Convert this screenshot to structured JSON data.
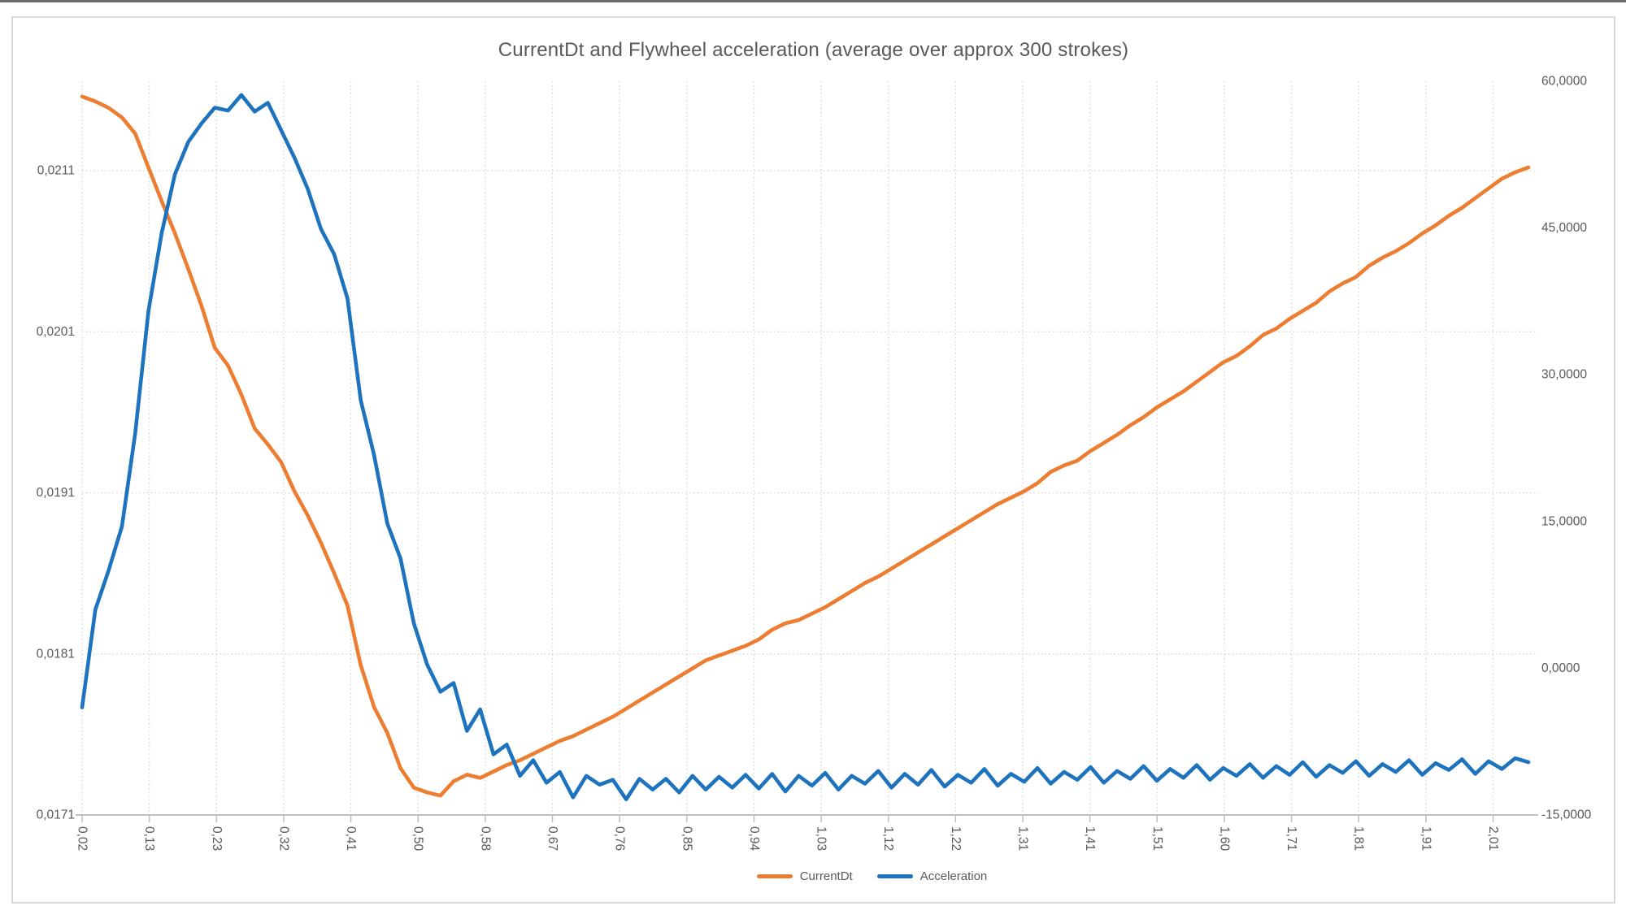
{
  "window": {
    "top_edge_color": "#6a6a6a"
  },
  "chart": {
    "title": "CurrentDt and Flywheel acceleration (average over approx 300 strokes)",
    "colors": {
      "series_currentdt": "#ED7D31",
      "series_acceleration": "#1E73BE",
      "gridline": "#d8d8d8",
      "axis_line": "#bfbfbf",
      "axis_text": "#595959",
      "border": "#d9d9d9"
    }
  },
  "chart_data": {
    "type": "line",
    "title": "CurrentDt and Flywheel acceleration (average over approx 300 strokes)",
    "grid": "dotted",
    "legend_position": "bottom",
    "x_axis": {
      "type": "category",
      "tick_labels": [
        "0,02",
        "0,13",
        "0,23",
        "0,32",
        "0,41",
        "0,50",
        "0,58",
        "0,67",
        "0,76",
        "0,85",
        "0,94",
        "1,03",
        "1,12",
        "1,22",
        "1,31",
        "1,41",
        "1,51",
        "1,60",
        "1,71",
        "1,81",
        "1,91",
        "2,01"
      ],
      "label_rotation_deg": 90,
      "note": "series sampled at 110 evenly spaced points across the axis; shown labels fall every ~5 samples"
    },
    "left_axis": {
      "applies_to": "CurrentDt",
      "tick_labels": [
        "0,0211",
        "0,0201",
        "0,0191",
        "0,0181",
        "0,0171"
      ],
      "tick_values": [
        0.0211,
        0.0201,
        0.0191,
        0.0181,
        0.0171
      ],
      "min": 0.0171,
      "max": 0.021655
    },
    "right_axis": {
      "applies_to": "Acceleration",
      "tick_labels": [
        "60,0000",
        "45,0000",
        "30,0000",
        "15,0000",
        "0,0000",
        "-15,0000"
      ],
      "tick_values": [
        60,
        45,
        30,
        15,
        0,
        -15
      ],
      "min": -15,
      "max": 60
    },
    "x_approx_seconds": [
      0.02,
      0.039,
      0.057,
      0.076,
      0.095,
      0.114,
      0.132,
      0.151,
      0.17,
      0.188,
      0.207,
      0.226,
      0.245,
      0.263,
      0.282,
      0.301,
      0.319,
      0.338,
      0.357,
      0.376,
      0.394,
      0.413,
      0.432,
      0.45,
      0.469,
      0.488,
      0.507,
      0.525,
      0.544,
      0.563,
      0.581,
      0.6,
      0.619,
      0.638,
      0.656,
      0.675,
      0.694,
      0.712,
      0.731,
      0.75,
      0.769,
      0.787,
      0.806,
      0.825,
      0.843,
      0.862,
      0.881,
      0.9,
      0.918,
      0.937,
      0.956,
      0.974,
      0.993,
      1.012,
      1.031,
      1.049,
      1.068,
      1.087,
      1.105,
      1.124,
      1.143,
      1.162,
      1.18,
      1.199,
      1.218,
      1.236,
      1.255,
      1.274,
      1.293,
      1.311,
      1.33,
      1.349,
      1.367,
      1.386,
      1.405,
      1.424,
      1.442,
      1.461,
      1.48,
      1.498,
      1.517,
      1.536,
      1.555,
      1.573,
      1.592,
      1.611,
      1.629,
      1.648,
      1.667,
      1.686,
      1.704,
      1.723,
      1.742,
      1.76,
      1.779,
      1.798,
      1.817,
      1.835,
      1.854,
      1.873,
      1.891,
      1.91,
      1.929,
      1.948,
      1.966,
      1.985,
      2.004,
      2.022,
      2.041,
      2.06
    ],
    "series": [
      {
        "name": "CurrentDt",
        "axis": "left",
        "color": "#ED7D31",
        "values": [
          0.02156,
          0.02153,
          0.02149,
          0.02143,
          0.02133,
          0.02112,
          0.02091,
          0.02071,
          0.02049,
          0.02026,
          0.02,
          0.01989,
          0.01971,
          0.0195,
          0.0194,
          0.01929,
          0.01911,
          0.01896,
          0.01879,
          0.0186,
          0.0184,
          0.01803,
          0.01777,
          0.01761,
          0.01739,
          0.01727,
          0.01724,
          0.01722,
          0.01731,
          0.01735,
          0.01733,
          0.01737,
          0.01741,
          0.01744,
          0.01748,
          0.01752,
          0.01756,
          0.01759,
          0.01763,
          0.01767,
          0.01771,
          0.01776,
          0.01781,
          0.01786,
          0.01791,
          0.01796,
          0.01801,
          0.01806,
          0.01809,
          0.01812,
          0.01815,
          0.01819,
          0.01825,
          0.01829,
          0.01831,
          0.01835,
          0.01839,
          0.01844,
          0.01849,
          0.01854,
          0.01858,
          0.01863,
          0.01868,
          0.01873,
          0.01878,
          0.01883,
          0.01888,
          0.01893,
          0.01898,
          0.01903,
          0.01907,
          0.01911,
          0.01916,
          0.01923,
          0.01927,
          0.0193,
          0.01936,
          0.01941,
          0.01946,
          0.01952,
          0.01957,
          0.01963,
          0.01968,
          0.01973,
          0.01979,
          0.01985,
          0.01991,
          0.01995,
          0.02001,
          0.02008,
          0.02012,
          0.02018,
          0.02023,
          0.02028,
          0.02035,
          0.0204,
          0.02044,
          0.02051,
          0.02056,
          0.0206,
          0.02065,
          0.02071,
          0.02076,
          0.02082,
          0.02087,
          0.02093,
          0.02099,
          0.02105,
          0.02109,
          0.02112
        ]
      },
      {
        "name": "Acceleration",
        "axis": "right",
        "color": "#1E73BE",
        "values": [
          -4.0,
          6.0,
          10.0,
          14.5,
          24.0,
          36.5,
          44.5,
          50.5,
          53.8,
          55.7,
          57.3,
          57.0,
          58.6,
          56.9,
          57.8,
          55.0,
          52.2,
          49.0,
          44.9,
          42.3,
          37.8,
          27.4,
          21.8,
          14.8,
          11.2,
          4.6,
          0.4,
          -2.4,
          -1.5,
          -6.4,
          -4.2,
          -8.8,
          -7.8,
          -11.0,
          -9.4,
          -11.7,
          -10.6,
          -13.2,
          -11.0,
          -11.9,
          -11.4,
          -13.4,
          -11.3,
          -12.4,
          -11.3,
          -12.7,
          -11.0,
          -12.4,
          -11.1,
          -12.2,
          -10.9,
          -12.3,
          -10.8,
          -12.6,
          -11.0,
          -12.0,
          -10.7,
          -12.4,
          -11.0,
          -11.8,
          -10.5,
          -12.2,
          -10.8,
          -11.9,
          -10.4,
          -12.1,
          -10.9,
          -11.7,
          -10.3,
          -12.0,
          -10.8,
          -11.6,
          -10.2,
          -11.8,
          -10.6,
          -11.4,
          -10.1,
          -11.7,
          -10.5,
          -11.3,
          -10.0,
          -11.5,
          -10.3,
          -11.2,
          -9.9,
          -11.4,
          -10.2,
          -11.0,
          -9.8,
          -11.2,
          -10.0,
          -10.9,
          -9.6,
          -11.1,
          -9.9,
          -10.7,
          -9.5,
          -11.0,
          -9.8,
          -10.6,
          -9.4,
          -10.9,
          -9.7,
          -10.4,
          -9.3,
          -10.8,
          -9.5,
          -10.3,
          -9.2,
          -9.6
        ]
      }
    ]
  }
}
